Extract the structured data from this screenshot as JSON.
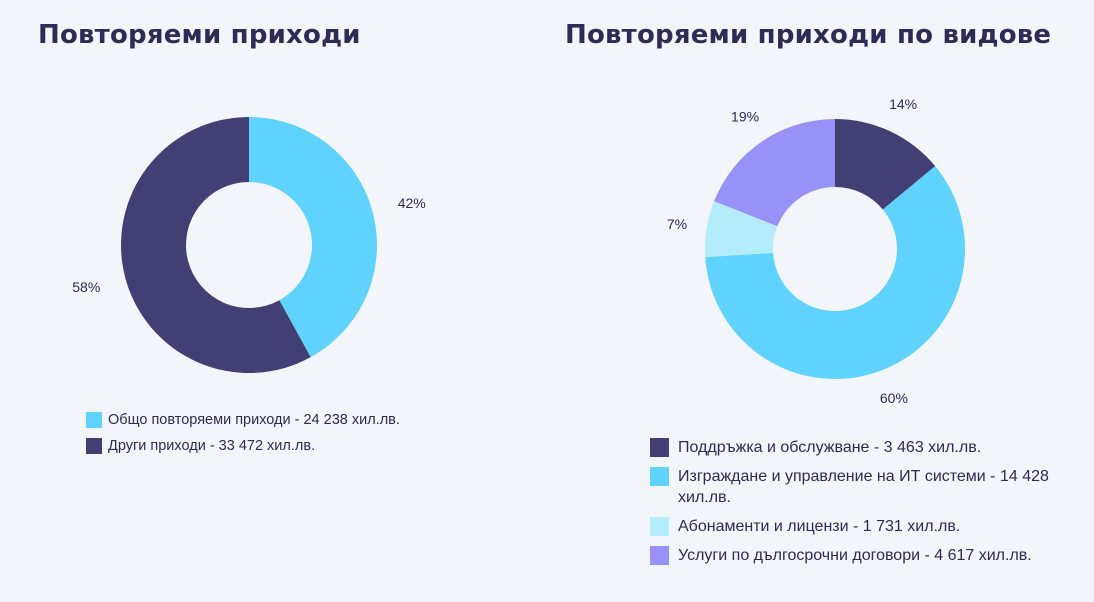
{
  "chart_data": [
    {
      "type": "pie",
      "style": "donut",
      "title": "Повторяеми приходи",
      "slices": [
        {
          "label": "Общо повторяеми приходи - 24 238 хил.лв.",
          "value": 42,
          "display": "42%",
          "color": "#5fd3fb"
        },
        {
          "label": "Други приходи - 33 472 хил.лв.",
          "value": 58,
          "display": "58%",
          "color": "#423f74"
        }
      ]
    },
    {
      "type": "pie",
      "style": "donut",
      "title": "Повторяеми приходи по видове",
      "slices": [
        {
          "label": "Поддръжка и обслужване - 3 463 хил.лв.",
          "value": 14,
          "display": "14%",
          "color": "#423f74"
        },
        {
          "label": "Изграждане и управление на ИТ системи - 14 428 хил.лв.",
          "value": 60,
          "display": "60%",
          "color": "#5fd3fb"
        },
        {
          "label": "Абонаменти и лицензи - 1 731 хил.лв.",
          "value": 7,
          "display": "7%",
          "color": "#b3ecfb"
        },
        {
          "label": "Услуги по дългосрочни договори - 4 617 хил.лв.",
          "value": 19,
          "display": "19%",
          "color": "#9891f7"
        }
      ]
    }
  ]
}
